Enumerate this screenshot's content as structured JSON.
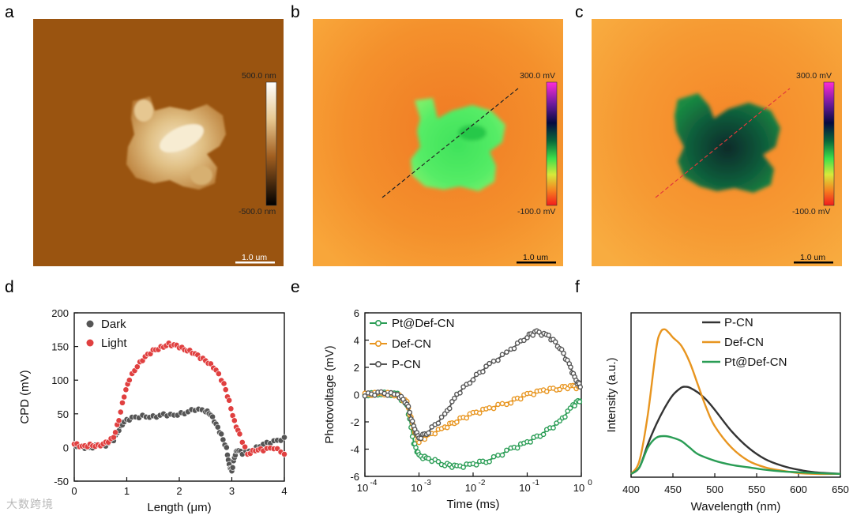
{
  "panels": {
    "a": {
      "letter": "a",
      "colorbar_max": "500.0 nm",
      "colorbar_min": "-500.0 nm",
      "scalebar": "1.0 um"
    },
    "b": {
      "letter": "b",
      "colorbar_max": "300.0 mV",
      "colorbar_min": "-100.0 mV",
      "scalebar": "1.0 um"
    },
    "c": {
      "letter": "c",
      "colorbar_max": "300.0 mV",
      "colorbar_min": "-100.0 mV",
      "scalebar": "1.0 um"
    }
  },
  "chart_data": [
    {
      "id": "d",
      "letter": "d",
      "type": "scatter",
      "xlabel": "Length (μm)",
      "ylabel": "CPD (mV)",
      "xlim": [
        0,
        4
      ],
      "ylim": [
        -50,
        200
      ],
      "xticks": [
        "0",
        "1",
        "2",
        "3",
        "4"
      ],
      "yticks": [
        "-50",
        "0",
        "50",
        "100",
        "150",
        "200"
      ],
      "legend": "top-left",
      "series": [
        {
          "name": "Dark",
          "color": "#555555",
          "x": [
            0.0,
            0.15,
            0.3,
            0.45,
            0.6,
            0.75,
            0.85,
            0.95,
            1.1,
            1.3,
            1.5,
            1.7,
            1.9,
            2.1,
            2.3,
            2.5,
            2.6,
            2.7,
            2.8,
            2.9,
            2.95,
            3.0,
            3.05,
            3.1,
            3.2,
            3.4,
            3.6,
            3.8,
            4.0
          ],
          "y": [
            5,
            2,
            0,
            3,
            2,
            10,
            25,
            38,
            45,
            48,
            47,
            50,
            48,
            50,
            55,
            53,
            48,
            35,
            20,
            0,
            -25,
            -35,
            -15,
            -5,
            -10,
            -5,
            5,
            10,
            15
          ]
        },
        {
          "name": "Light",
          "color": "#e04040",
          "x": [
            0.0,
            0.15,
            0.3,
            0.45,
            0.6,
            0.75,
            0.85,
            0.95,
            1.05,
            1.2,
            1.35,
            1.5,
            1.65,
            1.8,
            1.95,
            2.1,
            2.25,
            2.4,
            2.55,
            2.7,
            2.85,
            2.95,
            3.05,
            3.15,
            3.3,
            3.45,
            3.6,
            3.8,
            4.0
          ],
          "y": [
            5,
            2,
            5,
            4,
            8,
            15,
            40,
            75,
            100,
            120,
            135,
            145,
            150,
            155,
            152,
            145,
            140,
            132,
            125,
            115,
            95,
            70,
            40,
            20,
            -10,
            -5,
            -5,
            -2,
            -10
          ]
        }
      ]
    },
    {
      "id": "e",
      "letter": "e",
      "type": "line",
      "xscale": "log",
      "xlabel": "Time (ms)",
      "ylabel": "Photovoltage (mV)",
      "xlim": [
        0.0001,
        1
      ],
      "ylim": [
        -6,
        6
      ],
      "xtick_bases": [
        "10",
        "10",
        "10",
        "10",
        "10"
      ],
      "xtick_exps": [
        "-4",
        "-3",
        "-2",
        "-1",
        "0"
      ],
      "yticks": [
        "-6",
        "-4",
        "-2",
        "0",
        "2",
        "4",
        "6"
      ],
      "legend": "top-left",
      "series": [
        {
          "name": "Pt@Def-CN",
          "color": "#2a9d55",
          "x": [
            0.0001,
            0.0002,
            0.0004,
            0.0006,
            0.0008,
            0.001,
            0.0015,
            0.003,
            0.005,
            0.01,
            0.02,
            0.05,
            0.1,
            0.2,
            0.4,
            0.7,
            1.0
          ],
          "y": [
            0,
            0.1,
            0,
            -0.8,
            -3.5,
            -4.5,
            -4.7,
            -5.1,
            -5.3,
            -5.1,
            -4.8,
            -4.0,
            -3.5,
            -2.8,
            -2.0,
            -0.8,
            -0.3
          ]
        },
        {
          "name": "Def-CN",
          "color": "#e8951f",
          "x": [
            0.0001,
            0.0002,
            0.0004,
            0.0006,
            0.0008,
            0.001,
            0.0015,
            0.003,
            0.005,
            0.01,
            0.02,
            0.05,
            0.1,
            0.2,
            0.4,
            0.7,
            1.0
          ],
          "y": [
            0,
            0.1,
            0,
            -0.6,
            -2.5,
            -3.4,
            -3.0,
            -2.4,
            -1.9,
            -1.4,
            -1.0,
            -0.5,
            0,
            0.3,
            0.5,
            0.6,
            0.5
          ]
        },
        {
          "name": "P-CN",
          "color": "#555555",
          "x": [
            0.0001,
            0.0002,
            0.0004,
            0.0006,
            0.0008,
            0.001,
            0.0015,
            0.003,
            0.005,
            0.01,
            0.02,
            0.05,
            0.1,
            0.15,
            0.25,
            0.4,
            0.6,
            0.8,
            1.0
          ],
          "y": [
            0,
            0.1,
            0,
            -0.6,
            -2.4,
            -3.2,
            -2.7,
            -1.5,
            0,
            1.2,
            2.2,
            3.3,
            4.3,
            4.6,
            4.3,
            3.5,
            2.2,
            1.0,
            0.6
          ]
        }
      ]
    },
    {
      "id": "f",
      "letter": "f",
      "type": "line",
      "xlabel": "Wavelength (nm)",
      "ylabel": "Intensity (a.u.)",
      "xlim": [
        400,
        650
      ],
      "ylim": [
        0,
        1.0
      ],
      "xticks": [
        "400",
        "450",
        "500",
        "550",
        "600",
        "650"
      ],
      "legend": "top-right",
      "series": [
        {
          "name": "P-CN",
          "color": "#333333",
          "x": [
            400,
            410,
            420,
            430,
            440,
            450,
            460,
            465,
            470,
            480,
            490,
            500,
            520,
            540,
            560,
            580,
            600,
            620,
            650
          ],
          "y": [
            0.02,
            0.06,
            0.2,
            0.32,
            0.42,
            0.5,
            0.545,
            0.55,
            0.545,
            0.515,
            0.47,
            0.41,
            0.28,
            0.18,
            0.11,
            0.07,
            0.045,
            0.03,
            0.02
          ]
        },
        {
          "name": "Def-CN",
          "color": "#e8951f",
          "x": [
            400,
            410,
            420,
            430,
            435,
            440,
            445,
            450,
            460,
            470,
            480,
            490,
            500,
            520,
            540,
            560,
            580,
            600,
            620,
            650
          ],
          "y": [
            0.02,
            0.1,
            0.38,
            0.78,
            0.88,
            0.9,
            0.88,
            0.85,
            0.8,
            0.7,
            0.56,
            0.42,
            0.31,
            0.18,
            0.1,
            0.06,
            0.04,
            0.025,
            0.02,
            0.02
          ]
        },
        {
          "name": "Pt@Def-CN",
          "color": "#2a9d55",
          "x": [
            400,
            410,
            420,
            430,
            440,
            450,
            460,
            470,
            480,
            500,
            520,
            540,
            560,
            580,
            600,
            620,
            650
          ],
          "y": [
            0.02,
            0.06,
            0.18,
            0.24,
            0.25,
            0.24,
            0.22,
            0.18,
            0.14,
            0.1,
            0.075,
            0.06,
            0.045,
            0.035,
            0.03,
            0.025,
            0.02
          ]
        }
      ]
    }
  ],
  "watermark": "大数跨境"
}
